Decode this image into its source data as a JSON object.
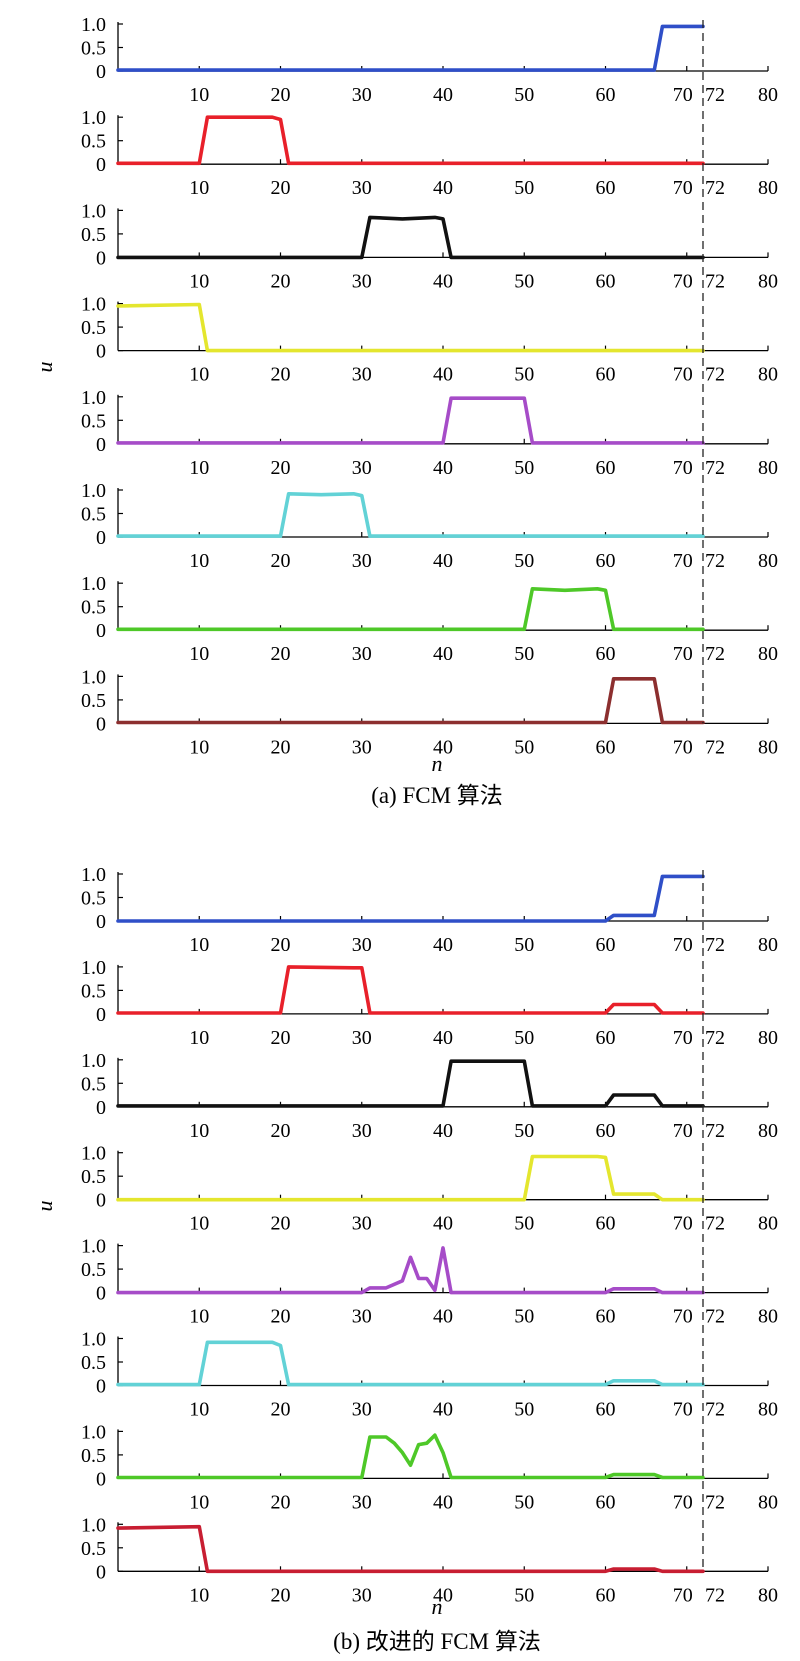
{
  "figures": [
    {
      "caption": "(a) FCM 算法",
      "xlabel": "n",
      "ylabel": "u"
    },
    {
      "caption": "(b) 改进的 FCM 算法",
      "xlabel": "n",
      "ylabel": "u"
    }
  ],
  "shared_axes": {
    "x_ticks": [
      "10",
      "20",
      "30",
      "40",
      "50",
      "60",
      "70",
      "72",
      "80"
    ],
    "y_ticks": [
      "1.0",
      "0.5",
      "0"
    ],
    "xlim": [
      0,
      80
    ],
    "ylim": [
      0,
      1.0
    ],
    "reference_line_x": 72,
    "reference_line_style": "dashed"
  },
  "chart_data": [
    {
      "type": "line",
      "title": "",
      "caption": "(a) FCM 算法",
      "xlabel": "n",
      "ylabel": "u",
      "xlim": [
        0,
        80
      ],
      "ylim": [
        0,
        1.0
      ],
      "grid": false,
      "layout": "8 stacked panels",
      "series": [
        {
          "color": "#2f4fc8",
          "points": [
            [
              0,
              0.02
            ],
            [
              66,
              0.02
            ],
            [
              67,
              0.95
            ],
            [
              72,
              0.95
            ]
          ]
        },
        {
          "color": "#e8202a",
          "points": [
            [
              0,
              0.02
            ],
            [
              10,
              0.02
            ],
            [
              11,
              1.0
            ],
            [
              19,
              1.0
            ],
            [
              20,
              0.95
            ],
            [
              21,
              0.02
            ],
            [
              72,
              0.02
            ]
          ]
        },
        {
          "color": "#111111",
          "points": [
            [
              0,
              0.0
            ],
            [
              30,
              0.0
            ],
            [
              31,
              0.85
            ],
            [
              35,
              0.82
            ],
            [
              39,
              0.85
            ],
            [
              40,
              0.82
            ],
            [
              41,
              0.0
            ],
            [
              72,
              0.0
            ]
          ]
        },
        {
          "color": "#e4e62e",
          "points": [
            [
              0,
              0.95
            ],
            [
              10,
              0.98
            ],
            [
              11,
              0.0
            ],
            [
              72,
              0.0
            ]
          ]
        },
        {
          "color": "#a64cc8",
          "points": [
            [
              0,
              0.02
            ],
            [
              40,
              0.02
            ],
            [
              41,
              0.97
            ],
            [
              50,
              0.97
            ],
            [
              51,
              0.02
            ],
            [
              72,
              0.02
            ]
          ]
        },
        {
          "color": "#62d2d6",
          "points": [
            [
              0,
              0.02
            ],
            [
              20,
              0.02
            ],
            [
              21,
              0.92
            ],
            [
              25,
              0.9
            ],
            [
              29,
              0.92
            ],
            [
              30,
              0.88
            ],
            [
              31,
              0.02
            ],
            [
              72,
              0.02
            ]
          ]
        },
        {
          "color": "#4ec828",
          "points": [
            [
              0,
              0.02
            ],
            [
              50,
              0.02
            ],
            [
              51,
              0.88
            ],
            [
              55,
              0.85
            ],
            [
              59,
              0.88
            ],
            [
              60,
              0.85
            ],
            [
              61,
              0.02
            ],
            [
              72,
              0.02
            ]
          ]
        },
        {
          "color": "#8c2f2f",
          "points": [
            [
              0,
              0.02
            ],
            [
              60,
              0.02
            ],
            [
              61,
              0.95
            ],
            [
              65,
              0.95
            ],
            [
              66,
              0.95
            ],
            [
              67,
              0.02
            ],
            [
              72,
              0.02
            ]
          ]
        }
      ]
    },
    {
      "type": "line",
      "title": "",
      "caption": "(b) 改进的 FCM 算法",
      "xlabel": "n",
      "ylabel": "u",
      "xlim": [
        0,
        80
      ],
      "ylim": [
        0,
        1.0
      ],
      "grid": false,
      "layout": "8 stacked panels",
      "series": [
        {
          "color": "#2f4fc8",
          "points": [
            [
              0,
              0.0
            ],
            [
              60,
              0.0
            ],
            [
              61,
              0.12
            ],
            [
              66,
              0.12
            ],
            [
              67,
              0.95
            ],
            [
              72,
              0.95
            ]
          ]
        },
        {
          "color": "#e8202a",
          "points": [
            [
              0,
              0.02
            ],
            [
              20,
              0.02
            ],
            [
              21,
              1.0
            ],
            [
              29,
              0.98
            ],
            [
              30,
              0.98
            ],
            [
              31,
              0.02
            ],
            [
              60,
              0.02
            ],
            [
              61,
              0.2
            ],
            [
              66,
              0.2
            ],
            [
              67,
              0.02
            ],
            [
              72,
              0.02
            ]
          ]
        },
        {
          "color": "#111111",
          "points": [
            [
              0,
              0.02
            ],
            [
              40,
              0.02
            ],
            [
              41,
              0.97
            ],
            [
              50,
              0.97
            ],
            [
              51,
              0.02
            ],
            [
              60,
              0.02
            ],
            [
              61,
              0.25
            ],
            [
              66,
              0.25
            ],
            [
              67,
              0.02
            ],
            [
              72,
              0.02
            ]
          ]
        },
        {
          "color": "#e4e62e",
          "points": [
            [
              0,
              0.0
            ],
            [
              50,
              0.0
            ],
            [
              51,
              0.92
            ],
            [
              59,
              0.92
            ],
            [
              60,
              0.9
            ],
            [
              61,
              0.12
            ],
            [
              66,
              0.12
            ],
            [
              67,
              0.0
            ],
            [
              72,
              0.0
            ]
          ]
        },
        {
          "color": "#a64cc8",
          "points": [
            [
              0,
              0.0
            ],
            [
              30,
              0.0
            ],
            [
              31,
              0.1
            ],
            [
              33,
              0.1
            ],
            [
              35,
              0.25
            ],
            [
              36,
              0.75
            ],
            [
              37,
              0.3
            ],
            [
              38,
              0.3
            ],
            [
              39,
              0.05
            ],
            [
              40,
              0.95
            ],
            [
              41,
              0.0
            ],
            [
              60,
              0.0
            ],
            [
              61,
              0.08
            ],
            [
              66,
              0.08
            ],
            [
              67,
              0.0
            ],
            [
              72,
              0.0
            ]
          ]
        },
        {
          "color": "#62d2d6",
          "points": [
            [
              0,
              0.02
            ],
            [
              10,
              0.02
            ],
            [
              11,
              0.92
            ],
            [
              19,
              0.92
            ],
            [
              20,
              0.85
            ],
            [
              21,
              0.02
            ],
            [
              60,
              0.02
            ],
            [
              61,
              0.1
            ],
            [
              66,
              0.1
            ],
            [
              67,
              0.02
            ],
            [
              72,
              0.02
            ]
          ]
        },
        {
          "color": "#4ec828",
          "points": [
            [
              0,
              0.02
            ],
            [
              30,
              0.02
            ],
            [
              31,
              0.88
            ],
            [
              33,
              0.88
            ],
            [
              34,
              0.75
            ],
            [
              35,
              0.55
            ],
            [
              36,
              0.28
            ],
            [
              37,
              0.72
            ],
            [
              38,
              0.75
            ],
            [
              39,
              0.92
            ],
            [
              40,
              0.55
            ],
            [
              41,
              0.02
            ],
            [
              60,
              0.02
            ],
            [
              61,
              0.08
            ],
            [
              66,
              0.08
            ],
            [
              67,
              0.02
            ],
            [
              72,
              0.02
            ]
          ]
        },
        {
          "color": "#c81e32",
          "points": [
            [
              0,
              0.92
            ],
            [
              10,
              0.95
            ],
            [
              11,
              0.0
            ],
            [
              60,
              0.0
            ],
            [
              61,
              0.05
            ],
            [
              66,
              0.05
            ],
            [
              67,
              0.0
            ],
            [
              72,
              0.0
            ]
          ]
        }
      ]
    }
  ]
}
